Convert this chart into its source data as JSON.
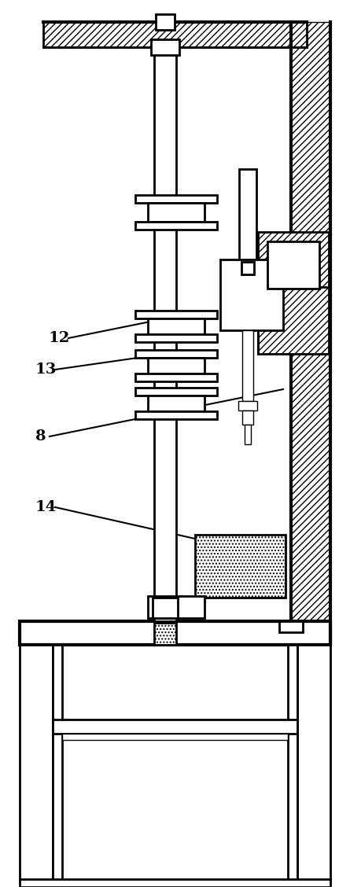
{
  "bg_color": "#ffffff",
  "line_color": "#000000",
  "fig_width": 4.45,
  "fig_height": 11.28,
  "label_font": 14
}
